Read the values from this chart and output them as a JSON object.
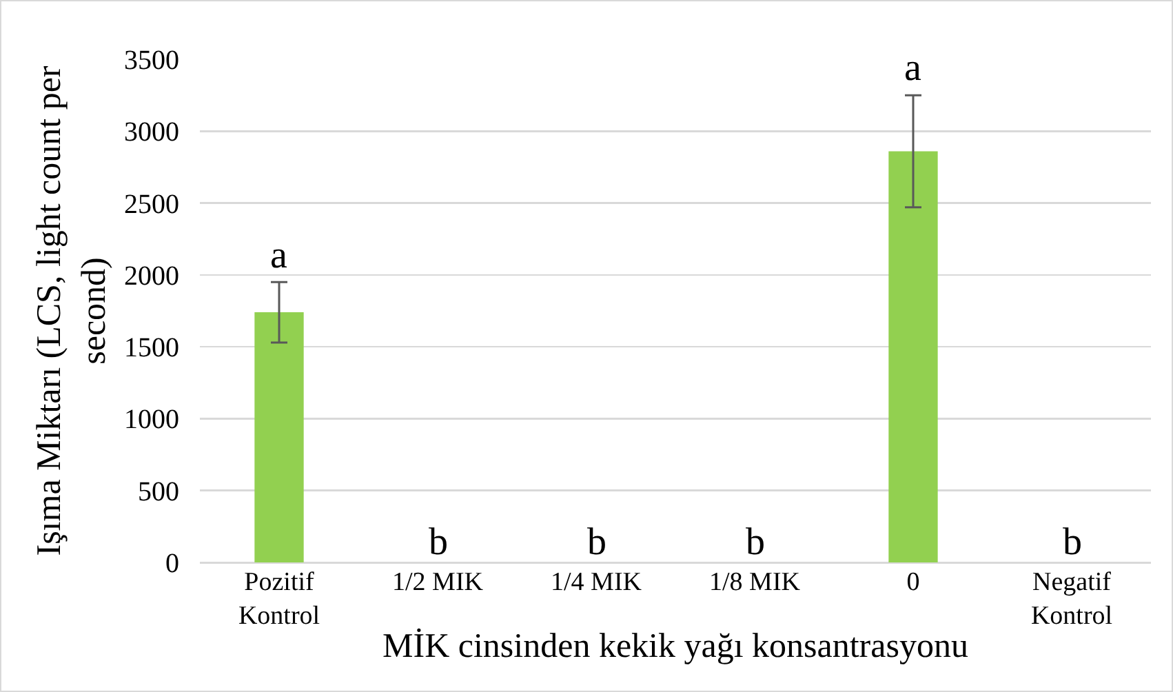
{
  "chart_data": {
    "type": "bar",
    "categories": [
      "Pozitif\nKontrol",
      "1/2 MIK",
      "1/4 MIK",
      "1/8 MIK",
      "0",
      "Negatif\nKontrol"
    ],
    "values": [
      1740,
      0,
      0,
      0,
      2860,
      0
    ],
    "errors": [
      210,
      null,
      null,
      null,
      390,
      null
    ],
    "color": "#92d050",
    "xlabel": "MİK cinsinden kekik yağı konsantrasyonu",
    "ylabel": "Işıma Miktarı (LCS, light count per\nsecond)",
    "ylim": [
      0,
      3500
    ],
    "yticks": [
      0,
      500,
      1000,
      1500,
      2000,
      2500,
      3000,
      3500
    ],
    "grid": "y",
    "annotations": [
      {
        "text": "a",
        "x": "Pozitif\nKontrol",
        "y": 1740
      },
      {
        "text": "b",
        "x": "1/2 MIK",
        "y": 0
      },
      {
        "text": "b",
        "x": "1/4 MIK",
        "y": 0
      },
      {
        "text": "b",
        "x": "1/8 MIK",
        "y": 0
      },
      {
        "text": "a",
        "x": "0",
        "y": 2860
      },
      {
        "text": "b",
        "x": "Negatif\nKontrol",
        "y": 0
      }
    ]
  }
}
